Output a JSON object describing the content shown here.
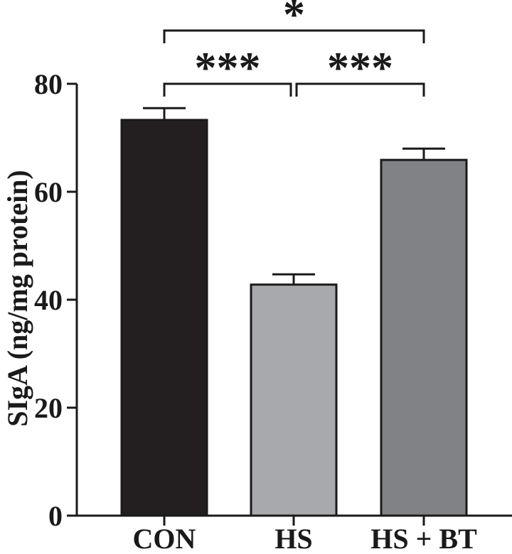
{
  "chart_data": {
    "type": "bar",
    "title": "",
    "xlabel": "",
    "ylabel": "SIgA (ng/mg protein)",
    "categories": [
      "CON",
      "HS",
      "HS + BT"
    ],
    "values": [
      73.3,
      42.8,
      65.9
    ],
    "errors": [
      2.2,
      1.9,
      2.1
    ],
    "ylim": [
      0,
      80
    ],
    "yticks": [
      0,
      20,
      40,
      60,
      80
    ],
    "ytick_labels": [
      "0",
      "20",
      "40",
      "60",
      "80"
    ],
    "bar_colors": [
      "#231f20",
      "#a7a9ac",
      "#808285"
    ],
    "grid": false,
    "legend": "none",
    "significance": [
      {
        "pair": [
          "CON",
          "HS"
        ],
        "label": "***"
      },
      {
        "pair": [
          "HS",
          "HS + BT"
        ],
        "label": "***"
      },
      {
        "pair": [
          "CON",
          "HS + BT"
        ],
        "label": "*"
      }
    ]
  }
}
